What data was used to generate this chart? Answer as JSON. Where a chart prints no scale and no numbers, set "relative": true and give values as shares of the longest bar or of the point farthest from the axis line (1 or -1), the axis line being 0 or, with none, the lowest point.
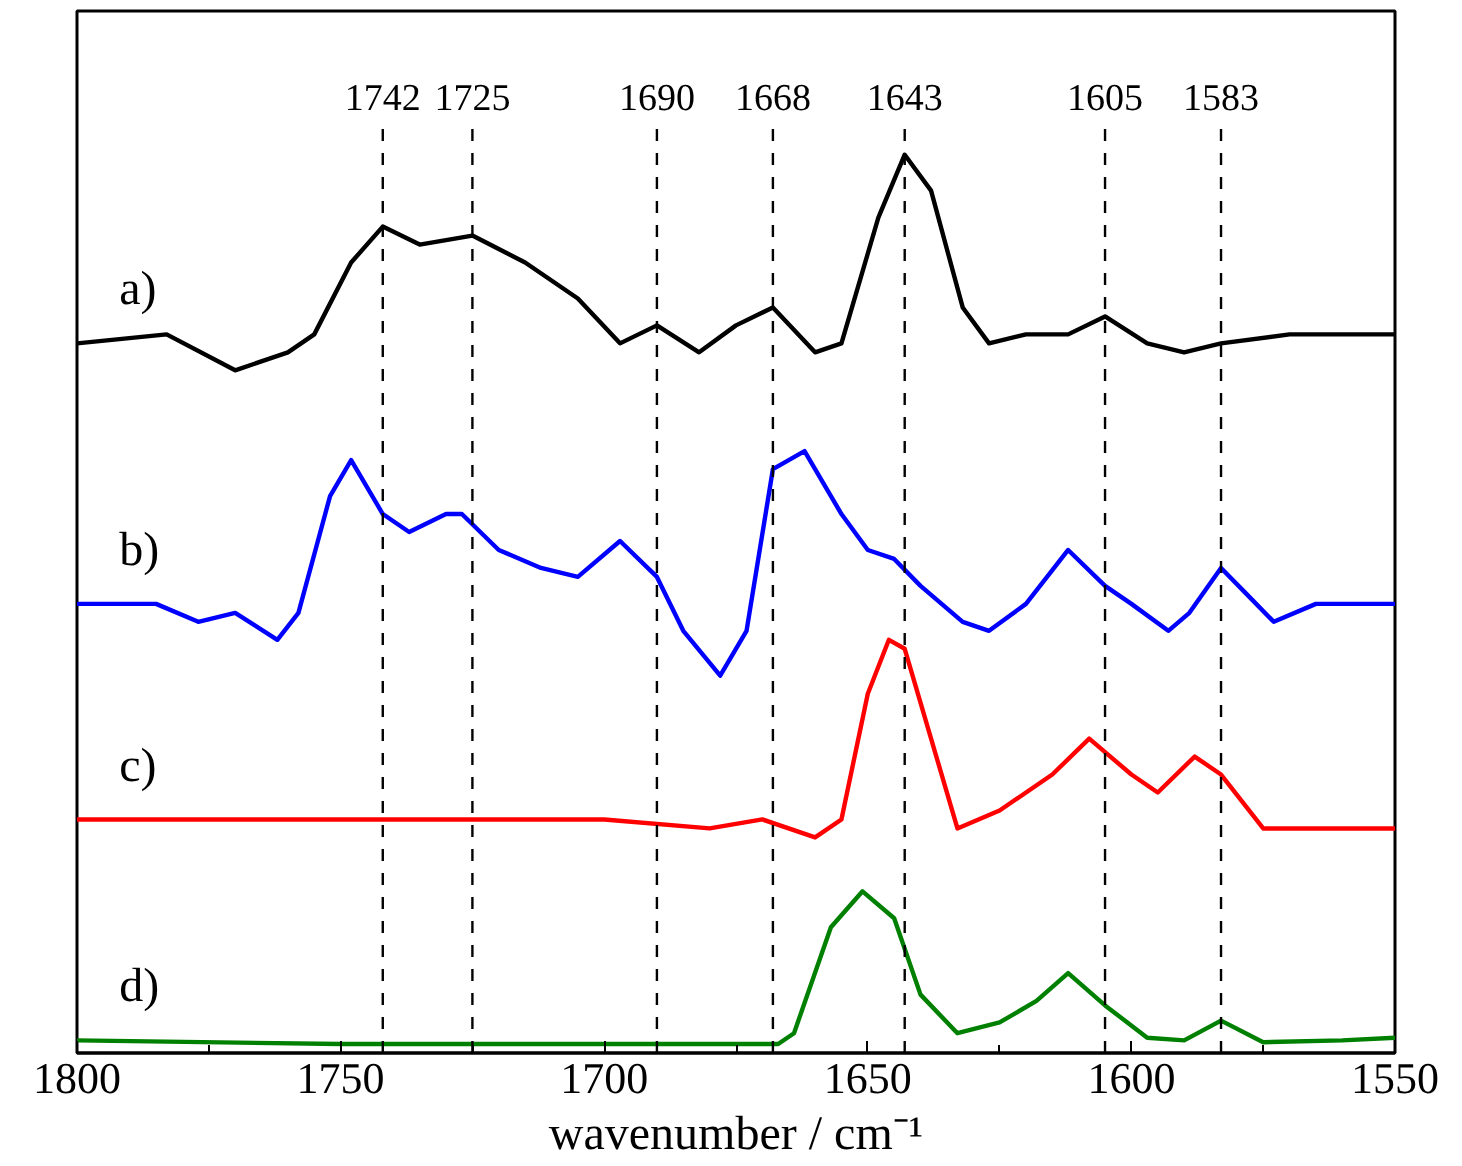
{
  "chart_data": {
    "type": "line",
    "relative": true,
    "xlabel": "wavenumber / cm⁻¹",
    "xlim": [
      1800,
      1550
    ],
    "xticks": [
      1800,
      1750,
      1700,
      1650,
      1600,
      1550
    ],
    "tick_labels": "x",
    "grid": false,
    "marker": "none",
    "line_style": "solid",
    "series": [
      {
        "name": "a)",
        "color": "#000000",
        "x": [
          1800,
          1783,
          1770,
          1760,
          1755,
          1748,
          1742,
          1735,
          1725,
          1715,
          1705,
          1697,
          1690,
          1682,
          1675,
          1668,
          1660,
          1655,
          1648,
          1643,
          1638,
          1632,
          1627,
          1620,
          1612,
          1605,
          1597,
          1590,
          1583,
          1570,
          1550
        ],
        "values": [
          0.79,
          0.8,
          0.76,
          0.78,
          0.8,
          0.88,
          0.92,
          0.9,
          0.91,
          0.88,
          0.84,
          0.79,
          0.81,
          0.78,
          0.81,
          0.83,
          0.78,
          0.79,
          0.93,
          1.0,
          0.96,
          0.83,
          0.79,
          0.8,
          0.8,
          0.82,
          0.79,
          0.78,
          0.79,
          0.8,
          0.8
        ]
      },
      {
        "name": "b)",
        "color": "#0000ff",
        "x": [
          1800,
          1785,
          1777,
          1770,
          1762,
          1758,
          1752,
          1748,
          1742,
          1737,
          1730,
          1727,
          1720,
          1712,
          1705,
          1697,
          1690,
          1685,
          1678,
          1673,
          1668,
          1662,
          1655,
          1650,
          1645,
          1640,
          1632,
          1627,
          1620,
          1612,
          1605,
          1600,
          1593,
          1589,
          1583,
          1578,
          1573,
          1565,
          1555,
          1550
        ],
        "values": [
          0.5,
          0.5,
          0.48,
          0.49,
          0.46,
          0.49,
          0.62,
          0.66,
          0.6,
          0.58,
          0.6,
          0.6,
          0.56,
          0.54,
          0.53,
          0.57,
          0.53,
          0.47,
          0.42,
          0.47,
          0.65,
          0.67,
          0.6,
          0.56,
          0.55,
          0.52,
          0.48,
          0.47,
          0.5,
          0.56,
          0.52,
          0.5,
          0.47,
          0.49,
          0.54,
          0.51,
          0.48,
          0.5,
          0.5,
          0.5
        ]
      },
      {
        "name": "c)",
        "color": "#ff0000",
        "x": [
          1800,
          1750,
          1700,
          1680,
          1670,
          1660,
          1655,
          1650,
          1646,
          1643,
          1638,
          1633,
          1625,
          1615,
          1608,
          1600,
          1595,
          1588,
          1583,
          1575,
          1565,
          1550
        ],
        "values": [
          0.26,
          0.26,
          0.26,
          0.25,
          0.26,
          0.24,
          0.26,
          0.4,
          0.46,
          0.45,
          0.35,
          0.25,
          0.27,
          0.31,
          0.35,
          0.31,
          0.29,
          0.33,
          0.31,
          0.25,
          0.25,
          0.25
        ]
      },
      {
        "name": "d)",
        "color": "#008000",
        "x": [
          1800,
          1750,
          1700,
          1667,
          1664,
          1657,
          1651,
          1645,
          1640,
          1633,
          1625,
          1618,
          1612,
          1605,
          1597,
          1590,
          1583,
          1575,
          1560,
          1550
        ],
        "values": [
          0.014,
          0.01,
          0.01,
          0.01,
          0.022,
          0.14,
          0.18,
          0.15,
          0.065,
          0.022,
          0.034,
          0.058,
          0.089,
          0.053,
          0.017,
          0.014,
          0.036,
          0.012,
          0.014,
          0.017
        ]
      }
    ],
    "ref_lines": [
      {
        "axis": "x",
        "value": 1742,
        "label": "1742",
        "line_style": "dashed",
        "color": "#000000"
      },
      {
        "axis": "x",
        "value": 1725,
        "label": "1725",
        "line_style": "dashed",
        "color": "#000000"
      },
      {
        "axis": "x",
        "value": 1690,
        "label": "1690",
        "line_style": "dashed",
        "color": "#000000"
      },
      {
        "axis": "x",
        "value": 1668,
        "label": "1668",
        "line_style": "dashed",
        "color": "#000000"
      },
      {
        "axis": "x",
        "value": 1643,
        "label": "1643",
        "line_style": "dashed",
        "color": "#000000"
      },
      {
        "axis": "x",
        "value": 1605,
        "label": "1605",
        "line_style": "dashed",
        "color": "#000000"
      },
      {
        "axis": "x",
        "value": 1583,
        "label": "1583",
        "line_style": "dashed",
        "color": "#000000"
      }
    ]
  }
}
